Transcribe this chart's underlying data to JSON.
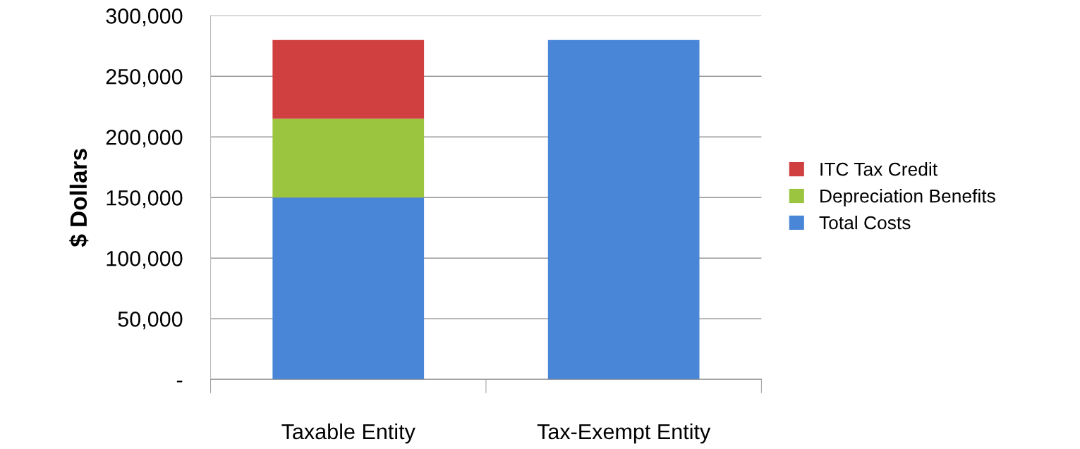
{
  "chart_data": {
    "type": "bar",
    "stacked": true,
    "ylabel": "$ Dollars",
    "categories": [
      "Taxable Entity",
      "Tax-Exempt Entity"
    ],
    "series": [
      {
        "name": "Total Costs",
        "color": "#4a86d8",
        "values": [
          150000,
          280000
        ]
      },
      {
        "name": "Depreciation Benefits",
        "color": "#9bc53f",
        "values": [
          65000,
          null
        ]
      },
      {
        "name": "ITC Tax Credit",
        "color": "#d04040",
        "values": [
          65000,
          null
        ]
      }
    ],
    "ylim": [
      0,
      300000
    ],
    "yticks": [
      {
        "value": 0,
        "label": "-"
      },
      {
        "value": 50000,
        "label": "50,000"
      },
      {
        "value": 100000,
        "label": "100,000"
      },
      {
        "value": 150000,
        "label": "150,000"
      },
      {
        "value": 200000,
        "label": "200,000"
      },
      {
        "value": 250000,
        "label": "250,000"
      },
      {
        "value": 300000,
        "label": "300,000"
      }
    ],
    "grid": "y",
    "legend": "right"
  }
}
